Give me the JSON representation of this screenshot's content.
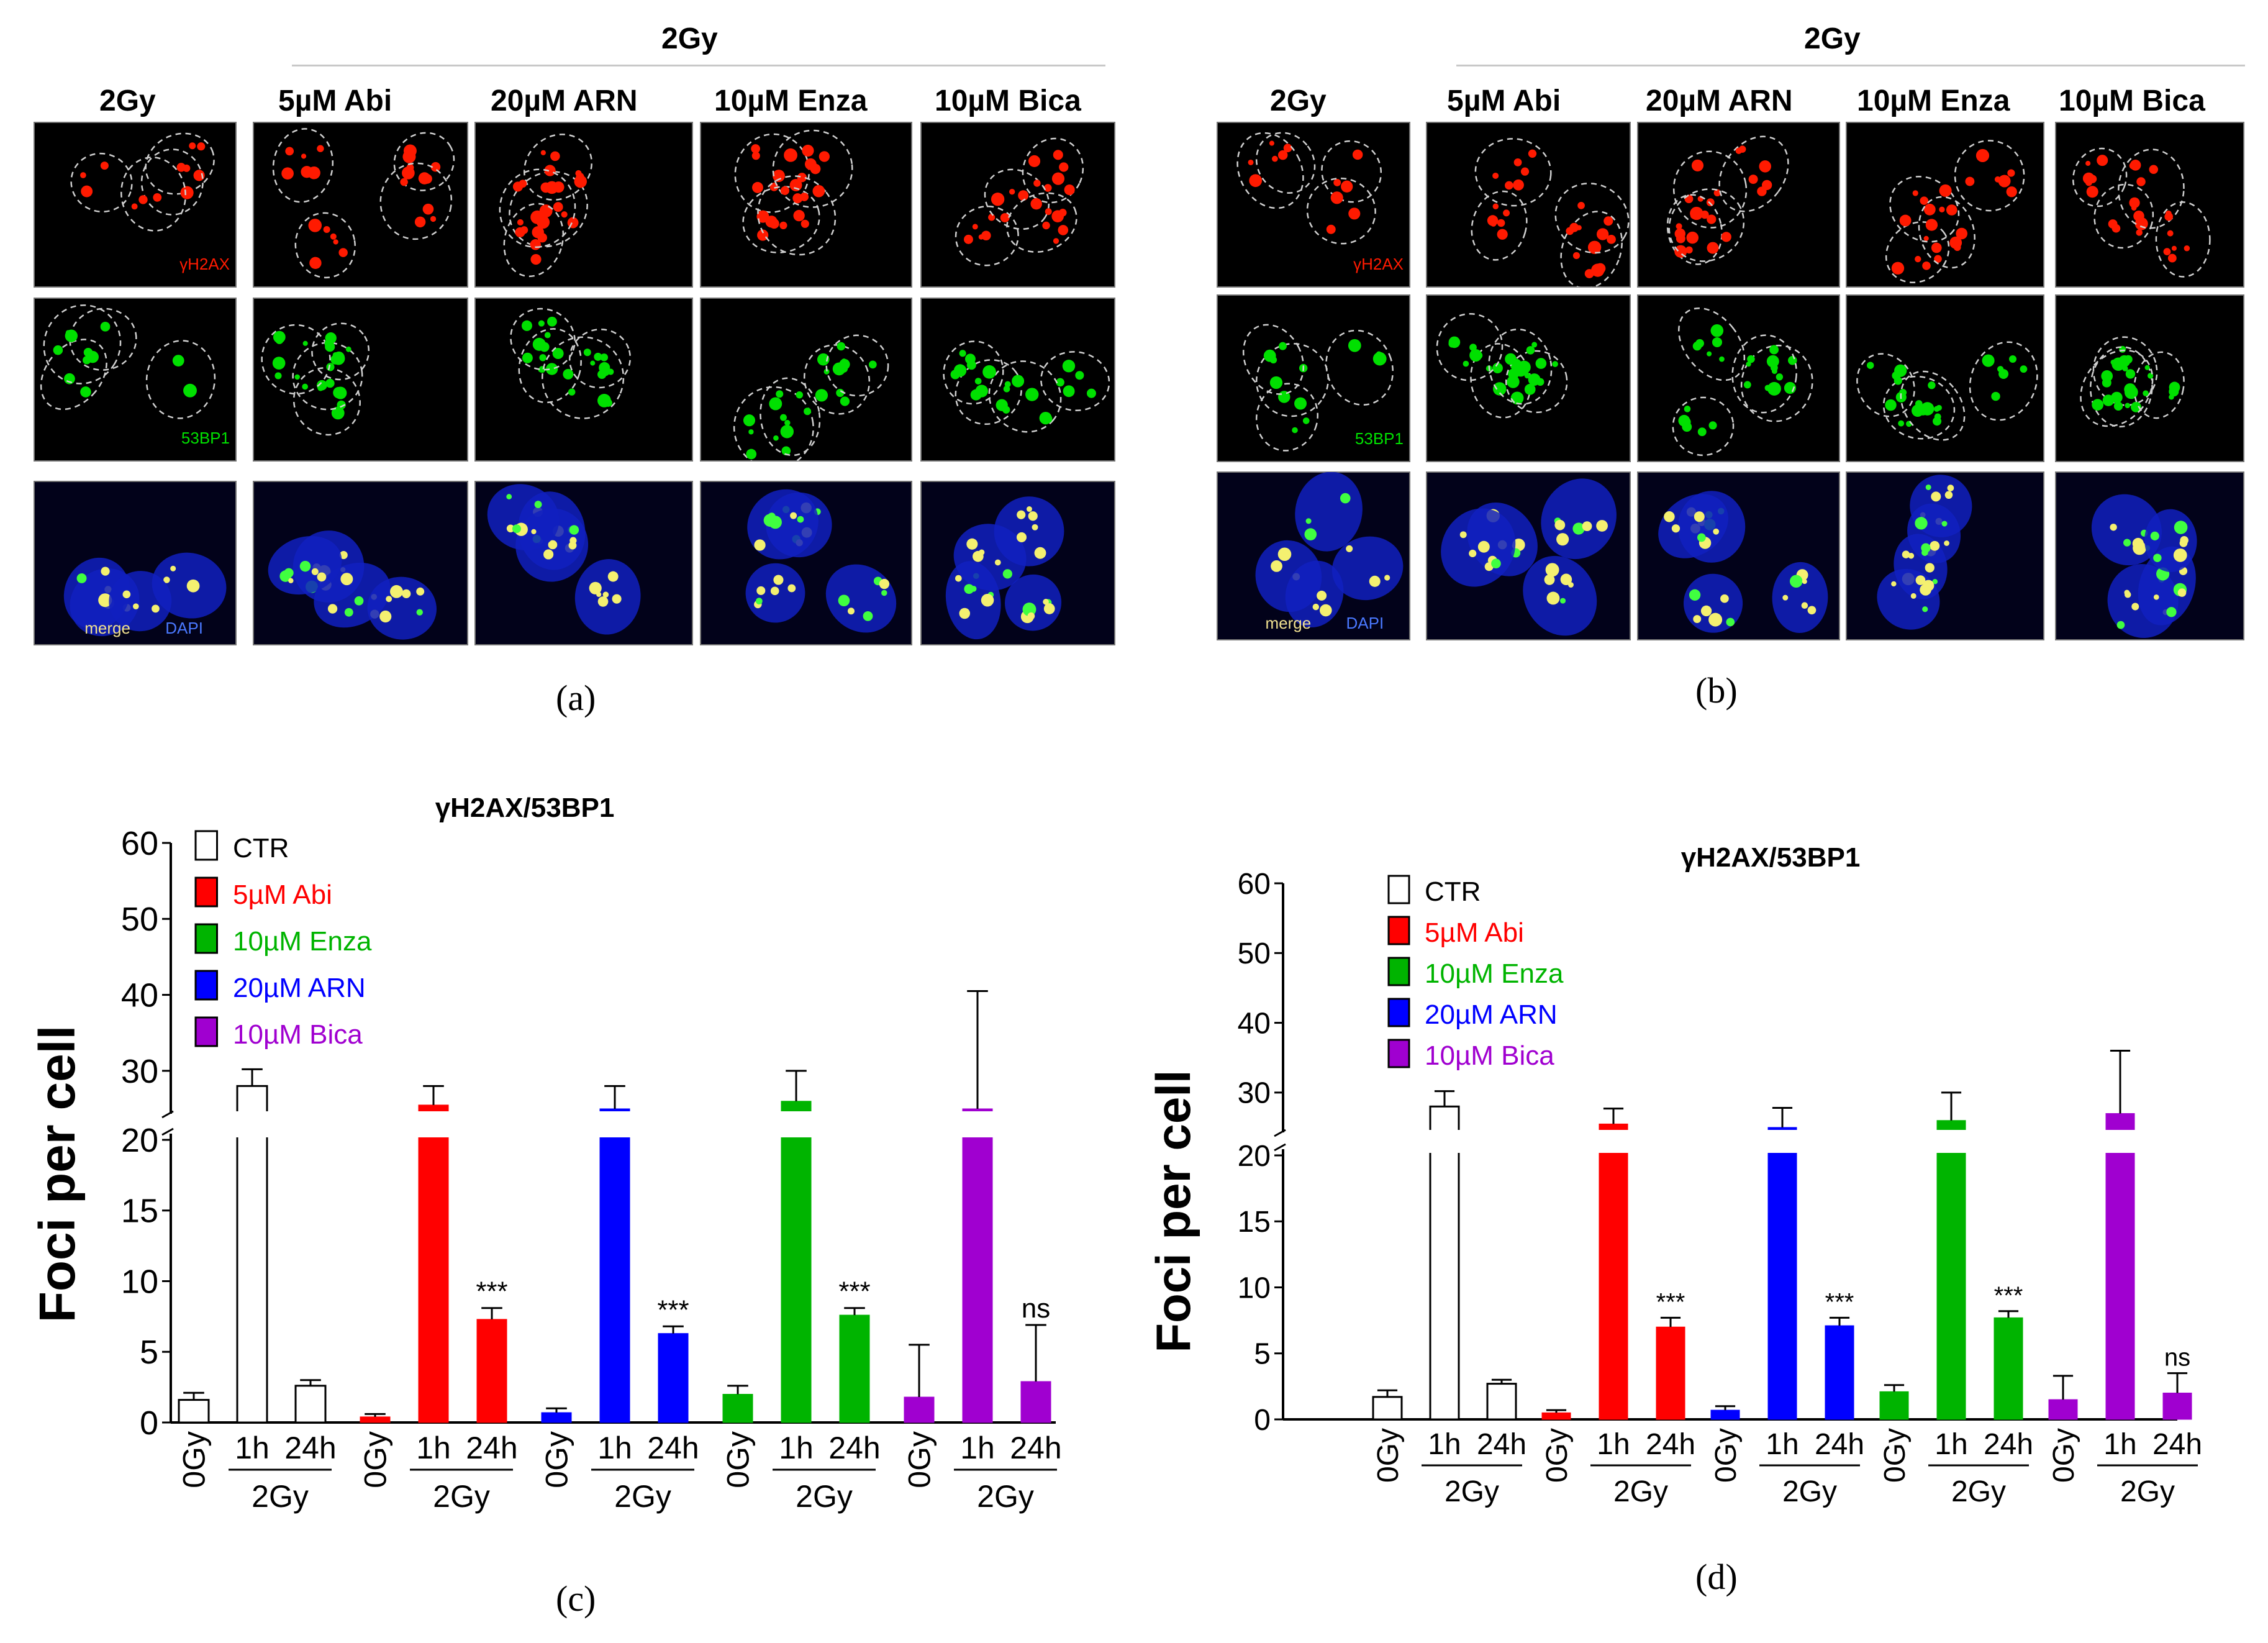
{
  "panels": {
    "a": {
      "label": "(a)",
      "top_header": "2Gy",
      "columns": [
        "2Gy",
        "5µM Abi",
        "20µM ARN",
        "10µM Enza",
        "10µM Bica"
      ],
      "row_labels": {
        "h2ax": "γH2AX",
        "bp53": "53BP1",
        "merge": "merge",
        "dapi": "DAPI"
      }
    },
    "b": {
      "label": "(b)",
      "top_header": "2Gy",
      "columns": [
        "2Gy",
        "5µM Abi",
        "20µM ARN",
        "10µM Enza",
        "10µM Bica"
      ],
      "row_labels": {
        "h2ax": "γH2AX",
        "bp53": "53BP1",
        "merge": "merge",
        "dapi": "DAPI"
      }
    },
    "c": {
      "label": "(c)"
    },
    "d": {
      "label": "(d)"
    }
  },
  "colors": {
    "ctr": "#ffffff",
    "abi": "#ff0000",
    "enza": "#00b400",
    "arn": "#0000ff",
    "bica": "#a000d0",
    "h2ax": "#ff1a00",
    "bp53": "#00e000",
    "dapi": "#1020c0"
  },
  "chart_data": [
    {
      "type": "bar",
      "panel": "c",
      "title": "γH2AX/53BP1",
      "ylabel": "Foci per cell",
      "yaxis_break": [
        20,
        25
      ],
      "ylim": [
        0,
        60
      ],
      "yticks": [
        "0",
        "5",
        "10",
        "15",
        "20",
        "30",
        "40",
        "50",
        "60"
      ],
      "legend": [
        {
          "name": "CTR",
          "color": "#000000"
        },
        {
          "name": "5µM Abi",
          "color": "#ff0000"
        },
        {
          "name": "10µM Enza",
          "color": "#00b400"
        },
        {
          "name": "20µM ARN",
          "color": "#0000ff"
        },
        {
          "name": "10µM Bica",
          "color": "#a000d0"
        }
      ],
      "time_labels": [
        "0Gy",
        "1h",
        "24h"
      ],
      "group_label": "2Gy",
      "groups": [
        {
          "treatment": "CTR",
          "values": [
            1.6,
            28,
            2.6
          ],
          "errors": [
            0.5,
            2.2,
            0.4
          ],
          "annotation": ""
        },
        {
          "treatment": "5µM Abi",
          "values": [
            0.4,
            25.5,
            7.3
          ],
          "errors": [
            0.2,
            2.5,
            0.8
          ],
          "annotation": "***"
        },
        {
          "treatment": "20µM ARN",
          "values": [
            0.7,
            25,
            6.3
          ],
          "errors": [
            0.3,
            3,
            0.5
          ],
          "annotation": "***"
        },
        {
          "treatment": "10µM Enza",
          "values": [
            2,
            26,
            7.6
          ],
          "errors": [
            0.6,
            4,
            0.5
          ],
          "annotation": "***"
        },
        {
          "treatment": "10µM Bica",
          "values": [
            1.8,
            25,
            2.9
          ],
          "errors": [
            3.7,
            15.5,
            4
          ],
          "annotation": "ns"
        }
      ]
    },
    {
      "type": "bar",
      "panel": "d",
      "title": "γH2AX/53BP1",
      "ylabel": "Foci per cell",
      "yaxis_break": [
        20,
        25
      ],
      "ylim": [
        0,
        60
      ],
      "yticks": [
        "0",
        "5",
        "10",
        "15",
        "20",
        "30",
        "40",
        "50",
        "60"
      ],
      "legend": [
        {
          "name": "CTR",
          "color": "#000000"
        },
        {
          "name": "5µM Abi",
          "color": "#ff0000"
        },
        {
          "name": "10µM Enza",
          "color": "#00b400"
        },
        {
          "name": "20µM ARN",
          "color": "#0000ff"
        },
        {
          "name": "10µM Bica",
          "color": "#a000d0"
        }
      ],
      "time_labels": [
        "0Gy",
        "1h",
        "24h"
      ],
      "group_label": "2Gy",
      "groups": [
        {
          "treatment": "CTR",
          "values": [
            1.7,
            28,
            2.7
          ],
          "errors": [
            0.5,
            2.2,
            0.3
          ],
          "annotation": ""
        },
        {
          "treatment": "5µM Abi",
          "values": [
            0.5,
            25.5,
            7
          ],
          "errors": [
            0.2,
            2.2,
            0.7
          ],
          "annotation": "***"
        },
        {
          "treatment": "20µM ARN",
          "values": [
            0.7,
            25,
            7.1
          ],
          "errors": [
            0.3,
            2.8,
            0.6
          ],
          "annotation": "***"
        },
        {
          "treatment": "10µM Enza",
          "values": [
            2.1,
            26,
            7.7
          ],
          "errors": [
            0.5,
            4,
            0.5
          ],
          "annotation": "***"
        },
        {
          "treatment": "10µM Bica",
          "values": [
            1.5,
            27,
            2
          ],
          "errors": [
            1.8,
            9,
            1.5
          ],
          "annotation": "ns"
        }
      ]
    }
  ]
}
